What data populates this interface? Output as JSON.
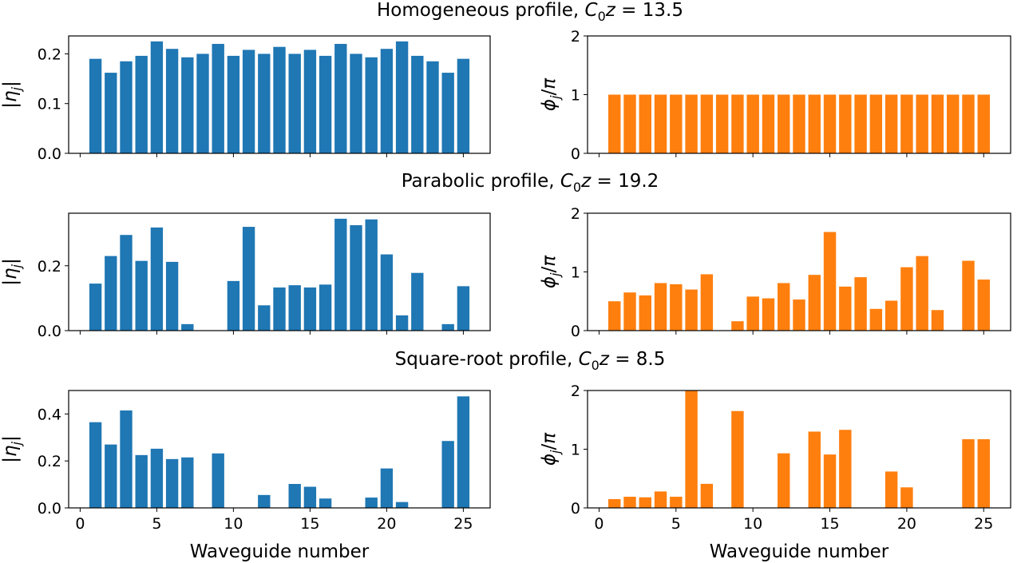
{
  "chart_data": [
    {
      "type": "bar",
      "title": "Homogeneous profile, C₀z = 13.5",
      "title_parts": {
        "prefix": "Homogeneous profile, ",
        "var": "C",
        "sub": "0",
        "var2": "z",
        "suffix": " = 13.5"
      },
      "panel": "amplitude",
      "ylabel": "|η_j|",
      "xlabel": "",
      "x": [
        1,
        2,
        3,
        4,
        5,
        6,
        7,
        8,
        9,
        10,
        11,
        12,
        13,
        14,
        15,
        16,
        17,
        18,
        19,
        20,
        21,
        22,
        23,
        24,
        25
      ],
      "values": [
        0.19,
        0.162,
        0.185,
        0.196,
        0.225,
        0.21,
        0.193,
        0.2,
        0.22,
        0.196,
        0.208,
        0.2,
        0.214,
        0.2,
        0.208,
        0.196,
        0.22,
        0.2,
        0.193,
        0.21,
        0.225,
        0.196,
        0.185,
        0.162,
        0.19
      ],
      "xlim": [
        -0.75,
        26.75
      ],
      "ylim": [
        0,
        0.236
      ],
      "yticks": [
        "0.0",
        "0.1",
        "0.2"
      ],
      "ytick_values": [
        0,
        0.1,
        0.2
      ],
      "xticks": [
        0,
        5,
        10,
        15,
        20,
        25
      ],
      "show_xticklabels": false,
      "color": "#1f77b4"
    },
    {
      "type": "bar",
      "panel": "phase",
      "ylabel": "ϕ_j/π",
      "xlabel": "",
      "x": [
        1,
        2,
        3,
        4,
        5,
        6,
        7,
        8,
        9,
        10,
        11,
        12,
        13,
        14,
        15,
        16,
        17,
        18,
        19,
        20,
        21,
        22,
        23,
        24,
        25
      ],
      "values": [
        1,
        1,
        1,
        1,
        1,
        1,
        1,
        1,
        1,
        1,
        1,
        1,
        1,
        1,
        1,
        1,
        1,
        1,
        1,
        1,
        1,
        1,
        1,
        1,
        1
      ],
      "xlim": [
        -0.75,
        26.75
      ],
      "ylim": [
        0,
        2
      ],
      "yticks": [
        "0",
        "1",
        "2"
      ],
      "ytick_values": [
        0,
        1,
        2
      ],
      "xticks": [
        0,
        5,
        10,
        15,
        20,
        25
      ],
      "show_xticklabels": false,
      "color": "#ff7f0e"
    },
    {
      "type": "bar",
      "title": "Parabolic profile, C₀z = 19.2",
      "title_parts": {
        "prefix": "Parabolic profile, ",
        "var": "C",
        "sub": "0",
        "var2": "z",
        "suffix": " = 19.2"
      },
      "panel": "amplitude",
      "ylabel": "|η_j|",
      "xlabel": "",
      "x": [
        1,
        2,
        3,
        4,
        5,
        6,
        7,
        8,
        9,
        10,
        11,
        12,
        13,
        14,
        15,
        16,
        17,
        18,
        19,
        20,
        21,
        22,
        23,
        24,
        25
      ],
      "values": [
        0.145,
        0.23,
        0.295,
        0.215,
        0.318,
        0.212,
        0.02,
        0,
        0,
        0.153,
        0.32,
        0.078,
        0.133,
        0.14,
        0.133,
        0.142,
        0.345,
        0.325,
        0.343,
        0.235,
        0.047,
        0.178,
        0,
        0.02,
        0.137
      ],
      "xlim": [
        -0.75,
        26.75
      ],
      "ylim": [
        0,
        0.362
      ],
      "yticks": [
        "0.0",
        "0.2"
      ],
      "ytick_values": [
        0,
        0.2
      ],
      "xticks": [
        0,
        5,
        10,
        15,
        20,
        25
      ],
      "show_xticklabels": false,
      "color": "#1f77b4"
    },
    {
      "type": "bar",
      "panel": "phase",
      "ylabel": "ϕ_j/π",
      "xlabel": "",
      "x": [
        1,
        2,
        3,
        4,
        5,
        6,
        7,
        8,
        9,
        10,
        11,
        12,
        13,
        14,
        15,
        16,
        17,
        18,
        19,
        20,
        21,
        22,
        23,
        24,
        25
      ],
      "values": [
        0.5,
        0.65,
        0.6,
        0.81,
        0.79,
        0.7,
        0.96,
        0,
        0.16,
        0.58,
        0.55,
        0.81,
        0.53,
        0.95,
        1.68,
        0.75,
        0.91,
        0.37,
        0.51,
        1.08,
        1.27,
        0.35,
        0,
        1.19,
        0.87
      ],
      "xlim": [
        -0.75,
        26.75
      ],
      "ylim": [
        0,
        2
      ],
      "yticks": [
        "0",
        "1",
        "2"
      ],
      "ytick_values": [
        0,
        1,
        2
      ],
      "xticks": [
        0,
        5,
        10,
        15,
        20,
        25
      ],
      "show_xticklabels": false,
      "color": "#ff7f0e"
    },
    {
      "type": "bar",
      "title": "Square-root profile, C₀z = 8.5",
      "title_parts": {
        "prefix": "Square-root profile, ",
        "var": "C",
        "sub": "0",
        "var2": "z",
        "suffix": " = 8.5"
      },
      "panel": "amplitude",
      "ylabel": "|η_j|",
      "xlabel": "Waveguide number",
      "x": [
        1,
        2,
        3,
        4,
        5,
        6,
        7,
        8,
        9,
        10,
        11,
        12,
        13,
        14,
        15,
        16,
        17,
        18,
        19,
        20,
        21,
        22,
        23,
        24,
        25
      ],
      "values": [
        0.365,
        0.27,
        0.415,
        0.225,
        0.252,
        0.208,
        0.215,
        0,
        0.232,
        0,
        0,
        0.055,
        0,
        0.102,
        0.09,
        0.04,
        0,
        0,
        0.044,
        0.168,
        0.025,
        0,
        0,
        0.285,
        0.475
      ],
      "xlim": [
        -0.75,
        26.75
      ],
      "ylim": [
        0,
        0.5
      ],
      "yticks": [
        "0.0",
        "0.2",
        "0.4"
      ],
      "ytick_values": [
        0,
        0.2,
        0.4
      ],
      "xticks": [
        0,
        5,
        10,
        15,
        20,
        25
      ],
      "show_xticklabels": true,
      "color": "#1f77b4"
    },
    {
      "type": "bar",
      "panel": "phase",
      "ylabel": "ϕ_j/π",
      "xlabel": "Waveguide number",
      "x": [
        1,
        2,
        3,
        4,
        5,
        6,
        7,
        8,
        9,
        10,
        11,
        12,
        13,
        14,
        15,
        16,
        17,
        18,
        19,
        20,
        21,
        22,
        23,
        24,
        25
      ],
      "values": [
        0.15,
        0.19,
        0.18,
        0.28,
        0.19,
        2.0,
        0.41,
        0,
        1.65,
        0,
        0,
        0.93,
        0,
        1.3,
        0.91,
        1.33,
        0,
        0,
        0.62,
        0.35,
        0,
        0,
        0,
        1.17,
        1.17
      ],
      "xlim": [
        -0.75,
        26.75
      ],
      "ylim": [
        0,
        2
      ],
      "yticks": [
        "0",
        "1",
        "2"
      ],
      "ytick_values": [
        0,
        1,
        2
      ],
      "xticks": [
        0,
        5,
        10,
        15,
        20,
        25
      ],
      "show_xticklabels": true,
      "color": "#ff7f0e"
    }
  ]
}
